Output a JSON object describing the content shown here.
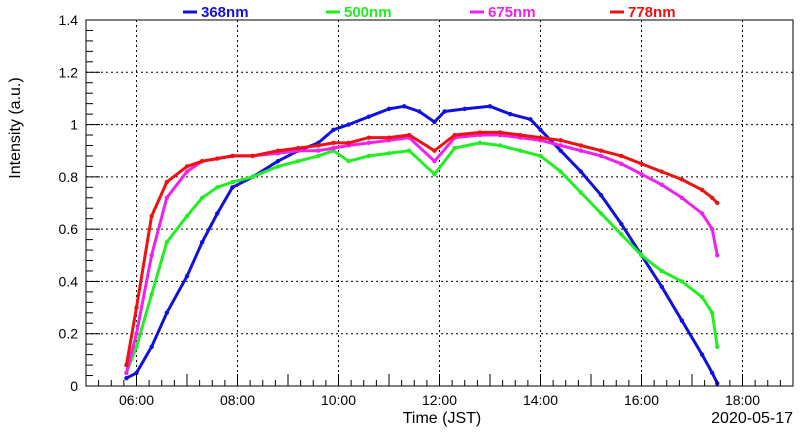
{
  "chart_data": {
    "type": "scatter",
    "title": "",
    "xlabel": "Time (JST)",
    "ylabel": "Intensity (a.u.)",
    "date_label": "2020-05-17",
    "xlim": [
      5.0,
      19.0
    ],
    "ylim": [
      0,
      1.4
    ],
    "xticks": [
      6,
      8,
      10,
      12,
      14,
      16,
      18
    ],
    "xtick_labels": [
      "06:00",
      "08:00",
      "10:00",
      "12:00",
      "14:00",
      "16:00",
      "18:00"
    ],
    "yticks": [
      0,
      0.2,
      0.4,
      0.6,
      0.8,
      1,
      1.2,
      1.4
    ],
    "ytick_labels": [
      "0",
      "0.2",
      "0.4",
      "0.6",
      "0.8",
      "1",
      "1.2",
      "1.4"
    ],
    "grid": true,
    "legend_position": "top",
    "series": [
      {
        "name": "368nm",
        "color": "#1010e0",
        "x": [
          5.8,
          6.0,
          6.3,
          6.6,
          7.0,
          7.3,
          7.6,
          7.9,
          8.3,
          8.8,
          9.2,
          9.6,
          9.9,
          10.2,
          10.6,
          11.0,
          11.3,
          11.6,
          11.9,
          12.1,
          12.5,
          13.0,
          13.4,
          13.8,
          14.0,
          14.4,
          14.8,
          15.2,
          15.6,
          16.0,
          16.4,
          16.8,
          17.2,
          17.4,
          17.5
        ],
        "y": [
          0.03,
          0.05,
          0.15,
          0.28,
          0.42,
          0.55,
          0.66,
          0.76,
          0.8,
          0.86,
          0.9,
          0.93,
          0.98,
          1.0,
          1.03,
          1.06,
          1.07,
          1.05,
          1.01,
          1.05,
          1.06,
          1.07,
          1.04,
          1.02,
          0.98,
          0.9,
          0.82,
          0.73,
          0.62,
          0.5,
          0.38,
          0.25,
          0.12,
          0.05,
          0.01
        ]
      },
      {
        "name": "500nm",
        "color": "#22ee22",
        "x": [
          5.8,
          6.0,
          6.3,
          6.6,
          7.0,
          7.3,
          7.6,
          7.9,
          8.3,
          8.8,
          9.2,
          9.6,
          9.9,
          10.2,
          10.6,
          11.0,
          11.4,
          11.9,
          12.3,
          12.8,
          13.2,
          13.6,
          14.0,
          14.4,
          14.8,
          15.2,
          15.6,
          16.0,
          16.4,
          16.8,
          17.2,
          17.4,
          17.5
        ],
        "y": [
          0.05,
          0.15,
          0.35,
          0.55,
          0.65,
          0.72,
          0.76,
          0.78,
          0.8,
          0.84,
          0.86,
          0.88,
          0.9,
          0.86,
          0.88,
          0.89,
          0.9,
          0.81,
          0.91,
          0.93,
          0.92,
          0.9,
          0.88,
          0.82,
          0.74,
          0.66,
          0.58,
          0.5,
          0.44,
          0.4,
          0.34,
          0.28,
          0.15
        ]
      },
      {
        "name": "675nm",
        "color": "#ee22ee",
        "x": [
          5.8,
          6.0,
          6.3,
          6.6,
          7.0,
          7.3,
          7.6,
          7.9,
          8.3,
          8.8,
          9.2,
          9.6,
          9.9,
          10.2,
          10.6,
          11.0,
          11.4,
          11.9,
          12.3,
          12.8,
          13.2,
          13.6,
          14.0,
          14.4,
          14.8,
          15.2,
          15.6,
          16.0,
          16.4,
          16.8,
          17.2,
          17.4,
          17.5
        ],
        "y": [
          0.05,
          0.2,
          0.5,
          0.72,
          0.82,
          0.86,
          0.87,
          0.88,
          0.88,
          0.89,
          0.9,
          0.9,
          0.91,
          0.92,
          0.93,
          0.94,
          0.95,
          0.86,
          0.95,
          0.96,
          0.96,
          0.95,
          0.94,
          0.92,
          0.9,
          0.88,
          0.85,
          0.81,
          0.77,
          0.72,
          0.66,
          0.6,
          0.5
        ]
      },
      {
        "name": "778nm",
        "color": "#ee1111",
        "x": [
          5.8,
          6.0,
          6.3,
          6.6,
          7.0,
          7.3,
          7.6,
          7.9,
          8.3,
          8.8,
          9.2,
          9.6,
          9.9,
          10.2,
          10.6,
          11.0,
          11.4,
          11.9,
          12.3,
          12.8,
          13.2,
          13.6,
          14.0,
          14.4,
          14.8,
          15.2,
          15.6,
          16.0,
          16.4,
          16.8,
          17.2,
          17.4,
          17.5
        ],
        "y": [
          0.08,
          0.3,
          0.65,
          0.78,
          0.84,
          0.86,
          0.87,
          0.88,
          0.88,
          0.9,
          0.91,
          0.92,
          0.93,
          0.93,
          0.95,
          0.95,
          0.96,
          0.9,
          0.96,
          0.97,
          0.97,
          0.96,
          0.95,
          0.94,
          0.92,
          0.9,
          0.88,
          0.85,
          0.82,
          0.79,
          0.75,
          0.72,
          0.7
        ]
      }
    ],
    "colors": {
      "axis": "#000000",
      "grid": "#000000",
      "background": "#ffffff"
    }
  }
}
